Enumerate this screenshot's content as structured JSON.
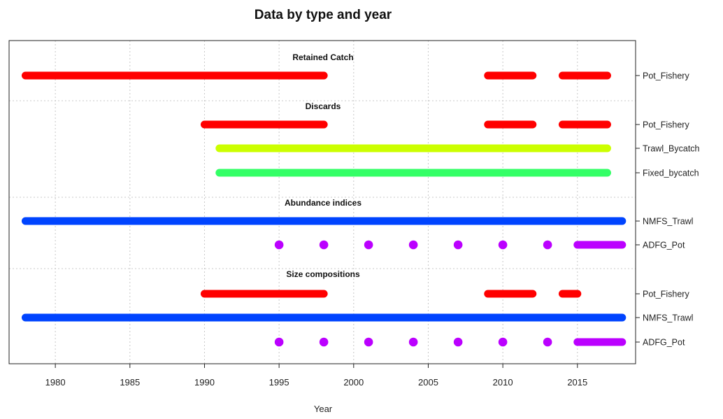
{
  "chart_data": {
    "type": "timeline",
    "title": "Data by type and year",
    "xlabel": "Year",
    "xlim": [
      1976.9,
      2018.9
    ],
    "xticks": [
      1980,
      1985,
      1990,
      1995,
      2000,
      2005,
      2010,
      2015
    ],
    "grid": true,
    "groups": [
      {
        "title": "Retained Catch",
        "rows": [
          {
            "label": "Pot_Fishery",
            "color": "#ff0000",
            "segments": [
              [
                1978,
                1998
              ],
              [
                2009,
                2012
              ],
              [
                2014,
                2017
              ]
            ],
            "points": []
          }
        ]
      },
      {
        "title": "Discards",
        "rows": [
          {
            "label": "Pot_Fishery",
            "color": "#ff0000",
            "segments": [
              [
                1990,
                1998
              ],
              [
                2009,
                2012
              ],
              [
                2014,
                2017
              ]
            ],
            "points": []
          },
          {
            "label": "Trawl_Bycatch",
            "color": "#ccff00",
            "segments": [
              [
                1991,
                2017
              ]
            ],
            "points": []
          },
          {
            "label": "Fixed_bycatch",
            "color": "#33ff66",
            "segments": [
              [
                1991,
                2017
              ]
            ],
            "points": []
          }
        ]
      },
      {
        "title": "Abundance indices",
        "rows": [
          {
            "label": "NMFS_Trawl",
            "color": "#0044ff",
            "segments": [
              [
                1978,
                2018
              ]
            ],
            "points": []
          },
          {
            "label": "ADFG_Pot",
            "color": "#bb00ff",
            "segments": [
              [
                2015,
                2018
              ]
            ],
            "points": [
              1995,
              1998,
              2001,
              2004,
              2007,
              2010,
              2013
            ]
          }
        ]
      },
      {
        "title": "Size compositions",
        "rows": [
          {
            "label": "Pot_Fishery",
            "color": "#ff0000",
            "segments": [
              [
                1990,
                1998
              ],
              [
                2009,
                2012
              ],
              [
                2014,
                2015
              ]
            ],
            "points": []
          },
          {
            "label": "NMFS_Trawl",
            "color": "#0044ff",
            "segments": [
              [
                1978,
                2018
              ]
            ],
            "points": []
          },
          {
            "label": "ADFG_Pot",
            "color": "#bb00ff",
            "segments": [
              [
                2015,
                2018
              ]
            ],
            "points": [
              1995,
              1998,
              2001,
              2004,
              2007,
              2010,
              2013
            ]
          }
        ]
      }
    ]
  }
}
